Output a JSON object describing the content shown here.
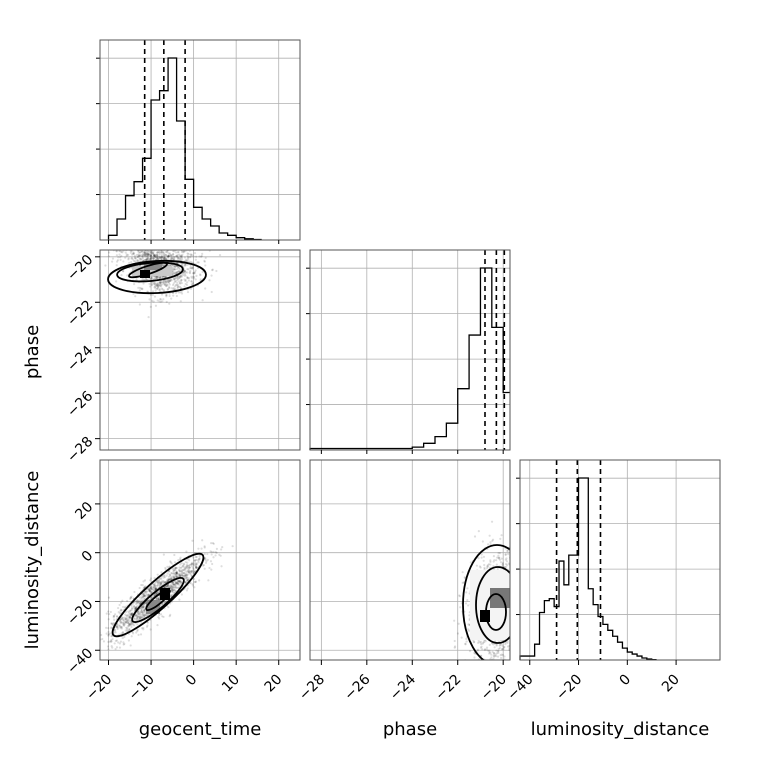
{
  "chart_data": {
    "type": "corner",
    "parameters": [
      "geocent_time",
      "phase",
      "luminosity_distance"
    ],
    "axis_ranges": {
      "geocent_time": [
        -22,
        25
      ],
      "phase": [
        -28.5,
        -19.7
      ],
      "luminosity_distance": [
        -44,
        38
      ]
    },
    "ticks": {
      "geocent_time": [
        -20,
        -10,
        0,
        10,
        20
      ],
      "phase": [
        -28,
        -26,
        -24,
        -22,
        -20
      ],
      "luminosity_distance": [
        -40,
        -20,
        0,
        20
      ]
    },
    "tick_labels": {
      "geocent_time": [
        "−20",
        "−10",
        "0",
        "10",
        "20"
      ],
      "phase": [
        "−28",
        "−26",
        "−24",
        "−22",
        "−20"
      ],
      "luminosity_distance": [
        "−40",
        "−20",
        "0",
        "20"
      ]
    },
    "grid": true,
    "histograms": {
      "geocent_time": {
        "bin_edges": [
          -20,
          -18,
          -16,
          -14,
          -12,
          -10,
          -8,
          -6,
          -4,
          -2,
          0,
          2,
          4,
          6,
          8,
          10,
          12,
          14,
          16
        ],
        "counts": [
          2,
          9,
          19,
          25,
          35,
          60,
          64,
          78,
          51,
          26,
          14,
          9,
          6,
          3,
          2,
          1,
          0.5,
          0.2
        ]
      },
      "phase": {
        "bin_edges": [
          -28.5,
          -24,
          -23.5,
          -23,
          -22.5,
          -22,
          -21.5,
          -21,
          -20.5,
          -20,
          -19.7
        ],
        "counts": [
          0.8,
          1.5,
          3.5,
          7,
          14,
          32,
          60,
          95,
          64,
          30
        ]
      },
      "luminosity_distance": {
        "bin_edges": [
          -44,
          -38,
          -36,
          -34,
          -32,
          -30,
          -28,
          -26,
          -24,
          -22,
          -20,
          -18,
          -16,
          -14,
          -12,
          -10,
          -8,
          -6,
          -4,
          -2,
          0,
          2,
          4,
          6,
          8,
          10,
          12
        ],
        "counts": [
          2,
          8,
          24,
          30,
          31,
          27,
          50,
          38,
          53,
          53,
          92,
          92,
          36,
          28,
          22,
          18,
          15,
          12,
          9,
          6,
          4,
          3,
          2,
          1,
          0.5,
          0.2
        ]
      }
    },
    "quantile_lines": {
      "geocent_time": [
        -11.5,
        -7,
        -2
      ],
      "phase": [
        -20.8,
        -20.3,
        -19.95
      ],
      "luminosity_distance": [
        -29,
        -20.5,
        -11
      ]
    },
    "scatter_centers": {
      "geocent_time_vs_phase": [
        -8,
        -20.6
      ],
      "geocent_time_vs_luminosity_distance": [
        -9,
        -18
      ],
      "phase_vs_luminosity_distance": [
        -20.2,
        -23
      ]
    }
  }
}
